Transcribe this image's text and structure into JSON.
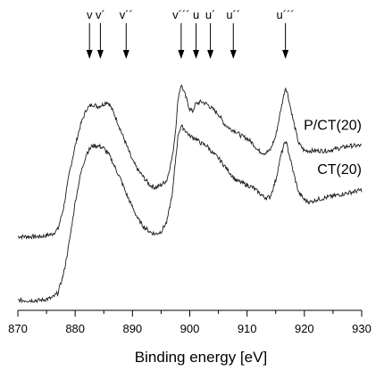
{
  "chart_data": {
    "type": "line",
    "title": "",
    "xlabel": "Binding energy [eV]",
    "ylabel": "",
    "xlim": [
      870,
      930
    ],
    "ylim": [
      0,
      1
    ],
    "x_ticks": [
      870,
      880,
      890,
      900,
      910,
      920,
      930
    ],
    "y_axis_shown": false,
    "grid": false,
    "peak_markers": [
      {
        "label": "v",
        "x": 882.5
      },
      {
        "label": "v´",
        "x": 884.4
      },
      {
        "label": "v´´",
        "x": 888.9
      },
      {
        "label": "v´´´",
        "x": 898.5
      },
      {
        "label": "u",
        "x": 901.1
      },
      {
        "label": "u´",
        "x": 903.6
      },
      {
        "label": "u´´",
        "x": 907.6
      },
      {
        "label": "u´´´",
        "x": 916.7
      }
    ],
    "series": [
      {
        "name": "P/CT(20)",
        "points": [
          [
            870,
            0.29
          ],
          [
            872,
            0.29
          ],
          [
            874,
            0.29
          ],
          [
            876,
            0.3
          ],
          [
            877,
            0.32
          ],
          [
            878,
            0.41
          ],
          [
            879,
            0.55
          ],
          [
            880,
            0.66
          ],
          [
            881,
            0.75
          ],
          [
            882,
            0.81
          ],
          [
            883,
            0.83
          ],
          [
            884,
            0.82
          ],
          [
            885,
            0.83
          ],
          [
            885.5,
            0.84
          ],
          [
            886,
            0.83
          ],
          [
            887,
            0.78
          ],
          [
            888,
            0.72
          ],
          [
            889,
            0.66
          ],
          [
            890,
            0.6
          ],
          [
            891,
            0.56
          ],
          [
            892,
            0.53
          ],
          [
            893,
            0.5
          ],
          [
            894,
            0.49
          ],
          [
            895,
            0.5
          ],
          [
            896,
            0.52
          ],
          [
            897,
            0.62
          ],
          [
            897.5,
            0.72
          ],
          [
            898,
            0.86
          ],
          [
            898.5,
            0.91
          ],
          [
            899,
            0.88
          ],
          [
            900,
            0.81
          ],
          [
            900.5,
            0.8
          ],
          [
            901,
            0.83
          ],
          [
            902,
            0.84
          ],
          [
            903,
            0.83
          ],
          [
            904,
            0.81
          ],
          [
            905,
            0.79
          ],
          [
            906,
            0.75
          ],
          [
            907,
            0.73
          ],
          [
            908,
            0.72
          ],
          [
            909,
            0.7
          ],
          [
            910,
            0.69
          ],
          [
            911,
            0.67
          ],
          [
            912,
            0.64
          ],
          [
            913,
            0.63
          ],
          [
            914,
            0.64
          ],
          [
            915,
            0.7
          ],
          [
            916,
            0.82
          ],
          [
            916.7,
            0.9
          ],
          [
            917,
            0.88
          ],
          [
            918,
            0.77
          ],
          [
            919,
            0.67
          ],
          [
            920,
            0.64
          ],
          [
            921,
            0.64
          ],
          [
            922,
            0.64
          ],
          [
            924,
            0.64
          ],
          [
            926,
            0.65
          ],
          [
            928,
            0.66
          ],
          [
            930,
            0.66
          ]
        ]
      },
      {
        "name": "CT(20)",
        "points": [
          [
            870,
            0.03
          ],
          [
            872,
            0.03
          ],
          [
            874,
            0.03
          ],
          [
            876,
            0.04
          ],
          [
            877,
            0.06
          ],
          [
            878,
            0.14
          ],
          [
            879,
            0.27
          ],
          [
            880,
            0.43
          ],
          [
            881,
            0.55
          ],
          [
            882,
            0.63
          ],
          [
            883,
            0.66
          ],
          [
            884,
            0.66
          ],
          [
            885,
            0.65
          ],
          [
            886,
            0.62
          ],
          [
            887,
            0.57
          ],
          [
            888,
            0.52
          ],
          [
            889,
            0.46
          ],
          [
            890,
            0.41
          ],
          [
            891,
            0.36
          ],
          [
            892,
            0.33
          ],
          [
            893,
            0.31
          ],
          [
            894,
            0.3
          ],
          [
            895,
            0.31
          ],
          [
            896,
            0.35
          ],
          [
            897,
            0.47
          ],
          [
            897.5,
            0.6
          ],
          [
            898,
            0.71
          ],
          [
            898.5,
            0.74
          ],
          [
            899,
            0.73
          ],
          [
            900,
            0.7
          ],
          [
            901,
            0.69
          ],
          [
            902,
            0.67
          ],
          [
            903,
            0.66
          ],
          [
            904,
            0.63
          ],
          [
            905,
            0.61
          ],
          [
            906,
            0.58
          ],
          [
            907,
            0.55
          ],
          [
            908,
            0.52
          ],
          [
            909,
            0.51
          ],
          [
            910,
            0.5
          ],
          [
            911,
            0.49
          ],
          [
            912,
            0.47
          ],
          [
            913,
            0.45
          ],
          [
            914,
            0.45
          ],
          [
            915,
            0.52
          ],
          [
            916,
            0.63
          ],
          [
            916.7,
            0.68
          ],
          [
            917,
            0.66
          ],
          [
            918,
            0.56
          ],
          [
            919,
            0.47
          ],
          [
            920,
            0.44
          ],
          [
            921,
            0.43
          ],
          [
            922,
            0.44
          ],
          [
            924,
            0.45
          ],
          [
            926,
            0.46
          ],
          [
            928,
            0.47
          ],
          [
            930,
            0.48
          ]
        ]
      }
    ]
  }
}
